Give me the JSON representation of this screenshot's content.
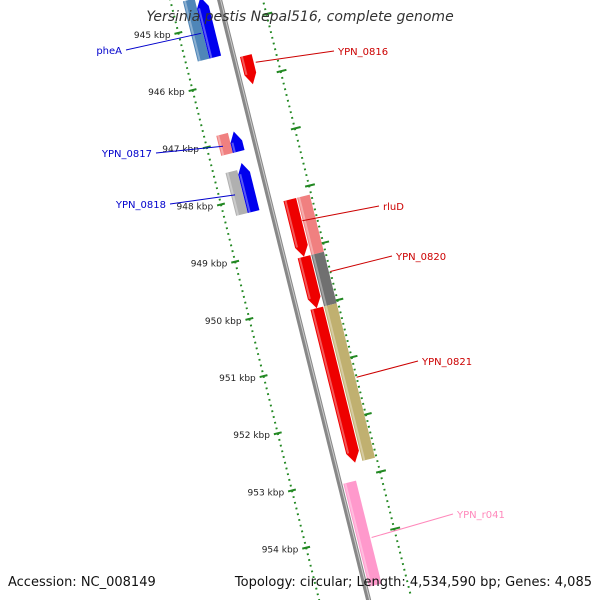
{
  "title": "Yersinia pestis Nepal516, complete genome",
  "footer": {
    "accession": "Accession: NC_008149",
    "summary": "Topology: circular; Length: 4,534,590 bp; Genes: 4,085"
  },
  "ruler": {
    "ticks": [
      "945 kbp",
      "946 kbp",
      "947 kbp",
      "948 kbp",
      "949 kbp",
      "950 kbp",
      "951 kbp",
      "952 kbp",
      "953 kbp",
      "954 kbp"
    ],
    "color": "#228822"
  },
  "backbone_color": "#888888",
  "genes": [
    {
      "name": "pheA",
      "strand": "reverse",
      "color": "#0000ee",
      "label_color": "#0000cc"
    },
    {
      "name": "YPN_0816",
      "strand": "forward",
      "color": "#ee0000",
      "label_color": "#cc0000"
    },
    {
      "name": "YPN_0817",
      "strand": "reverse",
      "color": "#0000ee",
      "label_color": "#0000cc"
    },
    {
      "name": "YPN_0818",
      "strand": "reverse",
      "color": "#0000ee",
      "label_color": "#0000cc"
    },
    {
      "name": "rluD",
      "strand": "forward",
      "color": "#ee0000",
      "label_color": "#cc0000"
    },
    {
      "name": "YPN_0820",
      "strand": "forward",
      "color": "#ee0000",
      "label_color": "#cc0000"
    },
    {
      "name": "YPN_0821",
      "strand": "forward",
      "color": "#ee0000",
      "label_color": "#cc0000"
    },
    {
      "name": "YPN_r041",
      "strand": "forward",
      "color": "#ff99cc",
      "label_color": "#ff88bb"
    }
  ]
}
